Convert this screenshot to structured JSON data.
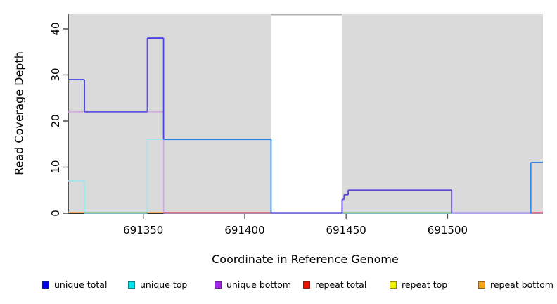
{
  "chart_data": {
    "type": "line",
    "title": "",
    "xlabel": "Coordinate in Reference Genome",
    "ylabel": "Read Coverage Depth",
    "xlim": [
      691313,
      691547
    ],
    "ylim": [
      0,
      43.2
    ],
    "x_ticks": [
      691350,
      691400,
      691450,
      691500
    ],
    "y_ticks": [
      0,
      10,
      20,
      30,
      40
    ],
    "grid": false,
    "legend_position": "bottom",
    "panel_color": "#DADADA",
    "panel_regions": [
      {
        "start": 691313,
        "end": 691413
      },
      {
        "start": 691448,
        "end": 691547
      }
    ],
    "uncovered_gap": {
      "start": 691413,
      "end": 691448,
      "top_value": 43,
      "line_color": "#949494"
    },
    "series": [
      {
        "name": "unique total",
        "legend_color": "#0000EE",
        "draw": true,
        "segments": [
          [
            691313,
            691321,
            29,
            "#4747DF"
          ],
          [
            691321,
            691352,
            22,
            "#6156E0"
          ],
          [
            691352,
            691360,
            38,
            "#4747DF"
          ],
          [
            691360,
            691413,
            16,
            "#2E86E8"
          ],
          [
            691413,
            691448,
            0,
            "#7B6CE2"
          ],
          [
            691448,
            691449,
            3,
            "#5B43DC"
          ],
          [
            691449,
            691451,
            4,
            "#5B43DC"
          ],
          [
            691451,
            691502,
            5,
            "#5B43DC"
          ],
          [
            691502,
            691541,
            0,
            "#ACA2E9"
          ],
          [
            691541,
            691547,
            11,
            "#2E86E8"
          ]
        ]
      },
      {
        "name": "unique top",
        "legend_color": "#00E5EE",
        "draw": true,
        "segments": [
          [
            691313,
            691321,
            7,
            "#9BE8EF"
          ],
          [
            691321,
            691352,
            0,
            "#9BE8EF"
          ],
          [
            691352,
            691413,
            16,
            "#9BE8EF"
          ],
          [
            691413,
            691541,
            0,
            "#9BE8EF"
          ],
          [
            691541,
            691547,
            11,
            "#9BE8EF"
          ]
        ]
      },
      {
        "name": "unique bottom",
        "legend_color": "#A125F0",
        "draw": true,
        "segments": [
          [
            691313,
            691360,
            22,
            "#CFA6DF"
          ],
          [
            691360,
            691448,
            0,
            "#CFA6DF"
          ],
          [
            691448,
            691449,
            3,
            "#CFA6DF"
          ],
          [
            691449,
            691451,
            4,
            "#CFA6DF"
          ],
          [
            691451,
            691502,
            5,
            "#CFA6DF"
          ],
          [
            691502,
            691547,
            0,
            "#CFA6DF"
          ]
        ]
      },
      {
        "name": "repeat total",
        "legend_color": "#EE1100",
        "draw": false,
        "segments": [
          [
            691313,
            691547,
            0
          ]
        ]
      },
      {
        "name": "repeat top",
        "legend_color": "#F2F200",
        "draw": false,
        "segments": [
          [
            691313,
            691547,
            0
          ]
        ]
      },
      {
        "name": "repeat bottom",
        "legend_color": "#F5A313",
        "draw": false,
        "segments": [
          [
            691313,
            691547,
            0
          ]
        ]
      }
    ],
    "baseline_segments": [
      [
        691313,
        691321,
        "#FFA245"
      ],
      [
        691321,
        691352,
        "#90CB90"
      ],
      [
        691352,
        691360,
        "#FFA245"
      ],
      [
        691360,
        691413,
        "#E5607F"
      ],
      [
        691413,
        691448,
        "#7B6CE2"
      ],
      [
        691448,
        691502,
        "#90CB90"
      ],
      [
        691502,
        691541,
        "#ACA2E9"
      ],
      [
        691541,
        691547,
        "#E5607F"
      ]
    ],
    "legend": [
      {
        "label": "unique total",
        "color": "#0000EE"
      },
      {
        "label": "unique top",
        "color": "#00E5EE"
      },
      {
        "label": "unique bottom",
        "color": "#A125F0"
      },
      {
        "label": "repeat total",
        "color": "#EE1100"
      },
      {
        "label": "repeat top",
        "color": "#F2F200"
      },
      {
        "label": "repeat bottom",
        "color": "#F5A313"
      }
    ]
  }
}
